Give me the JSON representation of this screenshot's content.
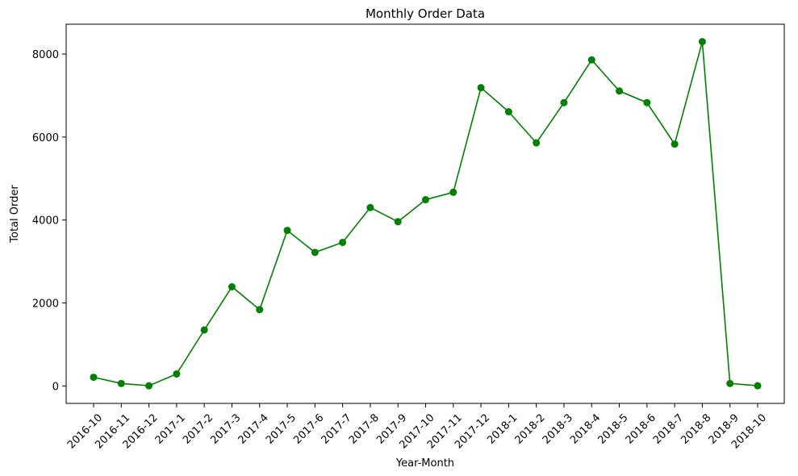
{
  "chart_data": {
    "type": "line",
    "title": "Monthly Order Data",
    "xlabel": "Year-Month",
    "ylabel": "Total Order",
    "categories": [
      "2016-10",
      "2016-11",
      "2016-12",
      "2017-1",
      "2017-2",
      "2017-3",
      "2017-4",
      "2017-5",
      "2017-6",
      "2017-7",
      "2017-8",
      "2017-9",
      "2017-10",
      "2017-11",
      "2017-12",
      "2018-1",
      "2018-2",
      "2018-3",
      "2018-4",
      "2018-5",
      "2018-6",
      "2018-7",
      "2018-8",
      "2018-9",
      "2018-10"
    ],
    "series": [
      {
        "color": "#008000",
        "marker": "circle",
        "values": [
          210,
          60,
          5,
          290,
          1350,
          2390,
          1840,
          3750,
          3220,
          3460,
          4300,
          3960,
          4490,
          4670,
          7190,
          6610,
          5860,
          6830,
          7860,
          7110,
          6830,
          5830,
          8300,
          60,
          5
        ]
      }
    ],
    "ylim": [
      -420,
      8720
    ],
    "yticks": [
      0,
      2000,
      4000,
      6000,
      8000
    ],
    "yticklabels": [
      "0",
      "2000",
      "4000",
      "6000",
      "8000"
    ],
    "grid": false,
    "legend": false
  }
}
